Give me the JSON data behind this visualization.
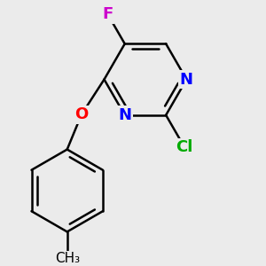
{
  "background_color": "#ebebeb",
  "bond_color": "#000000",
  "bond_width": 1.8,
  "atom_labels": {
    "F": {
      "color": "#cc00cc",
      "fontsize": 13,
      "fontweight": "bold"
    },
    "O": {
      "color": "#ff0000",
      "fontsize": 13,
      "fontweight": "bold"
    },
    "N": {
      "color": "#0000ff",
      "fontsize": 13,
      "fontweight": "bold"
    },
    "Cl": {
      "color": "#00aa00",
      "fontsize": 13,
      "fontweight": "bold"
    },
    "CH3": {
      "color": "#000000",
      "fontsize": 11,
      "fontweight": "normal"
    }
  },
  "figsize": [
    3.0,
    3.0
  ],
  "dpi": 100
}
